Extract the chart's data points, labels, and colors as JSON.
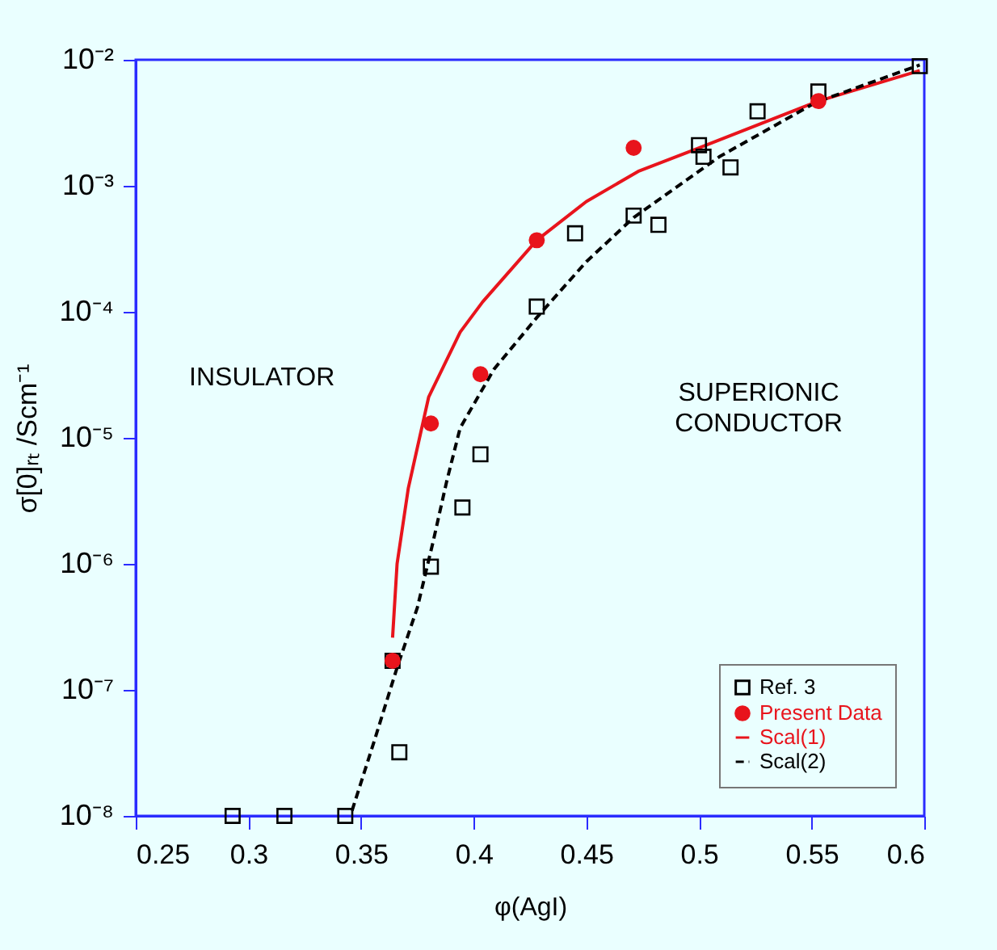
{
  "chart_data": {
    "type": "scatter",
    "xlabel": "φ(AgI)",
    "ylabel": "σ[0]ᵣₜ /Scm⁻¹",
    "log": "y",
    "xlim": [
      0.25,
      0.6
    ],
    "xticks": [
      0.25,
      0.3,
      0.35,
      0.4,
      0.45,
      0.5,
      0.55,
      0.6
    ],
    "ylim": [
      1e-08,
      0.01
    ],
    "yticks": [
      {
        "value": 1e-08,
        "label": "10⁻⁸"
      },
      {
        "value": 1e-07,
        "label": "10⁻⁷"
      },
      {
        "value": 1e-06,
        "label": "10⁻⁶"
      },
      {
        "value": 1e-05,
        "label": "10⁻⁵"
      },
      {
        "value": 0.0001,
        "label": "10⁻⁴"
      },
      {
        "value": 0.001,
        "label": "10⁻³"
      },
      {
        "value": 0.01,
        "label": "10⁻²"
      }
    ],
    "legend": "bottom right",
    "annotations": [
      "INSULATOR",
      "SUPERIONIC\nCONDUCTOR"
    ],
    "series": [
      {
        "name": "Ref. 3",
        "marker": "square",
        "color": "#000000",
        "x": [
          0.293,
          0.316,
          0.343,
          0.364,
          0.367,
          0.381,
          0.395,
          0.403,
          0.428,
          0.445,
          0.471,
          0.482,
          0.5,
          0.502,
          0.514,
          0.526,
          0.553,
          0.598
        ],
        "values": [
          1e-08,
          1e-08,
          1e-08,
          1.7e-07,
          3.2e-08,
          9.5e-07,
          2.8e-06,
          7.4e-06,
          0.00011,
          0.00042,
          0.00058,
          0.00049,
          0.0021,
          0.0017,
          0.0014,
          0.0039,
          0.0056,
          0.0089
        ]
      },
      {
        "name": "Present Data",
        "marker": "circle",
        "color": "#e8141c",
        "x": [
          0.364,
          0.381,
          0.403,
          0.428,
          0.471,
          0.553
        ],
        "values": [
          1.7e-07,
          1.3e-05,
          3.2e-05,
          0.00037,
          0.002,
          0.0047
        ]
      },
      {
        "name": "Scal(1)",
        "type": "line",
        "marker": "none",
        "line_style": "solid",
        "color": "#e8141c",
        "x": [
          0.364,
          0.366,
          0.371,
          0.38,
          0.394,
          0.404,
          0.428,
          0.45,
          0.473,
          0.5,
          0.553,
          0.598
        ],
        "values": [
          2.6e-07,
          1e-06,
          4e-06,
          2.1e-05,
          6.9e-05,
          0.00012,
          0.00037,
          0.00075,
          0.0013,
          0.002,
          0.0047,
          0.0082
        ]
      },
      {
        "name": "Scal(2)",
        "type": "line",
        "marker": "none",
        "line_style": "dashed",
        "color": "#000000",
        "x": [
          0.346,
          0.356,
          0.366,
          0.375,
          0.382,
          0.388,
          0.394,
          0.409,
          0.428,
          0.45,
          0.471,
          0.509,
          0.552,
          0.598
        ],
        "values": [
          1.1e-08,
          4e-08,
          1.5e-07,
          4.5e-07,
          1.5e-06,
          4.5e-06,
          1.2e-05,
          3.5e-05,
          9e-05,
          0.00025,
          0.00056,
          0.0017,
          0.0046,
          0.0091
        ]
      }
    ]
  }
}
